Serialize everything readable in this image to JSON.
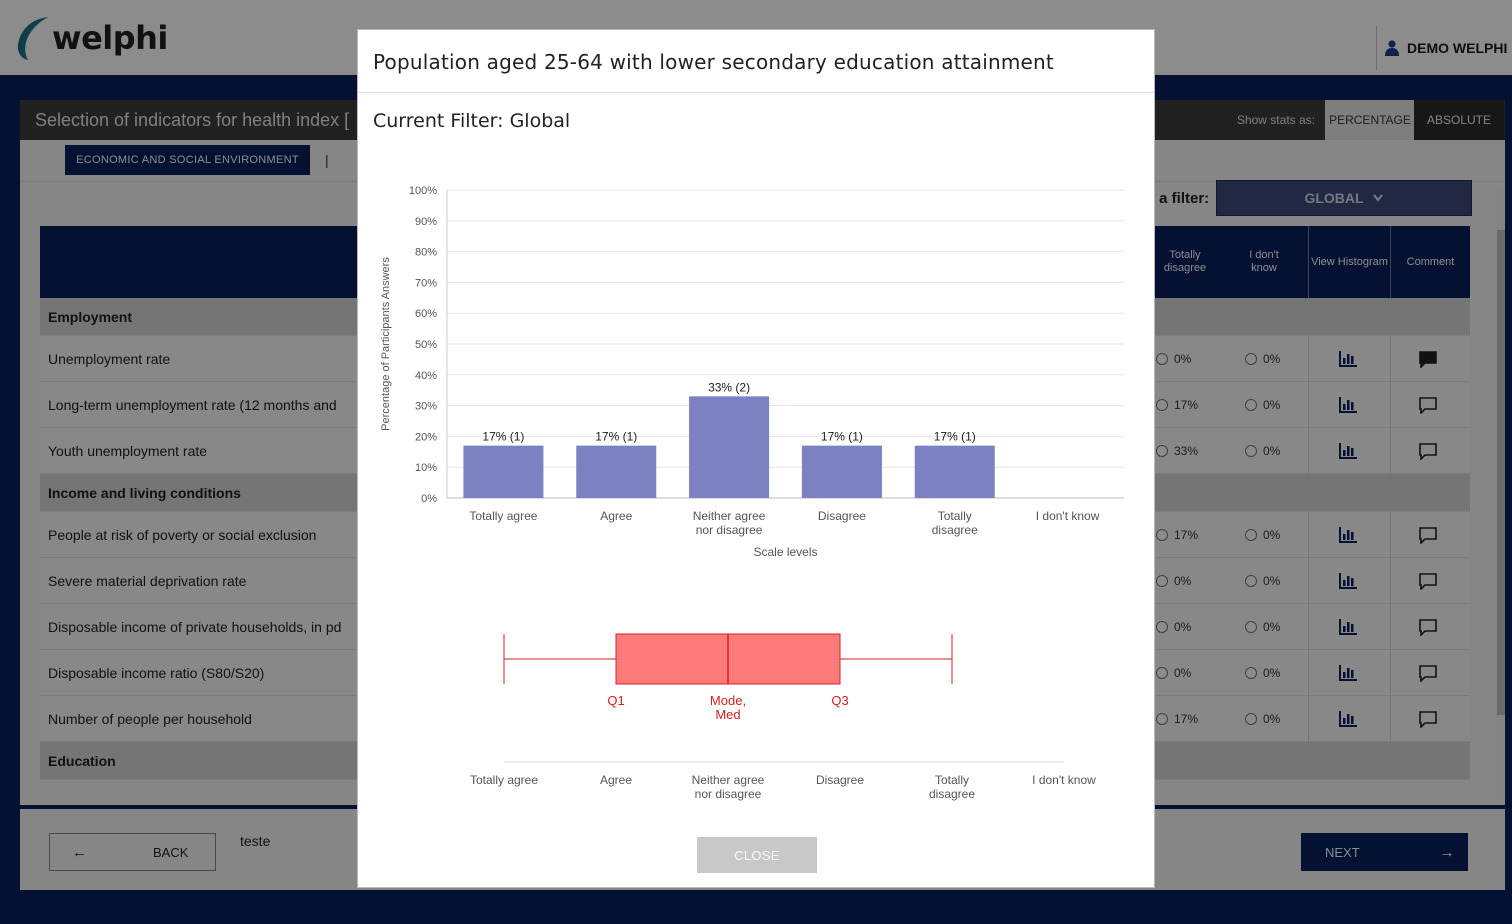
{
  "app": {
    "logo_text": "welphi",
    "user_name": "DEMO WELPHI"
  },
  "page": {
    "title": "Selection of indicators for health index [",
    "show_stats_label": "Show stats as:",
    "stats_options": [
      "PERCENTAGE",
      "ABSOLUTE"
    ],
    "active_tab": "ECONOMIC AND SOCIAL ENVIRONMENT",
    "tab_separator": "|",
    "filter_label": "t a filter:",
    "filter_value": "GLOBAL",
    "columns": {
      "totally_disagree": "Totally disagree",
      "dont_know": "I don't know",
      "view_histogram": "View Histogram",
      "comment": "Comment"
    },
    "rows": [
      {
        "type": "group",
        "label": "Employment"
      },
      {
        "type": "item",
        "label": "Unemployment rate",
        "td": "0%",
        "dk": "0%",
        "comment_filled": true
      },
      {
        "type": "item",
        "label": "Long-term unemployment rate (12 months and",
        "td": "17%",
        "dk": "0%",
        "comment_filled": false
      },
      {
        "type": "item",
        "label": "Youth unemployment rate",
        "td": "33%",
        "dk": "0%",
        "comment_filled": false
      },
      {
        "type": "group",
        "label": "Income and living conditions"
      },
      {
        "type": "item",
        "label": "People at risk of poverty or social exclusion",
        "td": "17%",
        "dk": "0%",
        "comment_filled": false
      },
      {
        "type": "item",
        "label": "Severe material deprivation rate",
        "td": "0%",
        "dk": "0%",
        "comment_filled": false
      },
      {
        "type": "item",
        "label": "Disposable income of private households, in pd",
        "td": "0%",
        "dk": "0%",
        "comment_filled": false
      },
      {
        "type": "item",
        "label": "Disposable income ratio (S80/S20)",
        "td": "0%",
        "dk": "0%",
        "comment_filled": false
      },
      {
        "type": "item",
        "label": "Number of people per household",
        "td": "17%",
        "dk": "0%",
        "comment_filled": false
      },
      {
        "type": "group",
        "label": "Education"
      }
    ],
    "back_label": "BACK",
    "next_label": "NEXT",
    "comment_text": "teste"
  },
  "modal": {
    "title": "Population aged 25-64 with lower secondary education attainment",
    "filter_text": "Current Filter: Global",
    "close_label": "CLOSE"
  },
  "chart_data": [
    {
      "type": "bar",
      "categories": [
        "Totally agree",
        "Agree",
        "Neither agree nor disagree",
        "Disagree",
        "Totally disagree",
        "I don't know"
      ],
      "values": [
        17,
        17,
        33,
        17,
        17,
        0
      ],
      "counts": [
        1,
        1,
        2,
        1,
        1,
        0
      ],
      "data_labels": [
        "17% (1)",
        "17% (1)",
        "33% (2)",
        "17% (1)",
        "17% (1)",
        ""
      ],
      "xlabel": "Scale levels",
      "ylabel": "Percentage of Participants Answers",
      "ylim": [
        0,
        100
      ],
      "yticks": [
        "0%",
        "10%",
        "20%",
        "30%",
        "40%",
        "50%",
        "60%",
        "70%",
        "80%",
        "90%",
        "100%"
      ],
      "grid": true,
      "color": "#7b81c1"
    },
    {
      "type": "boxplot",
      "categories": [
        "Totally agree",
        "Agree",
        "Neither agree nor disagree",
        "Disagree",
        "Totally disagree",
        "I don't know"
      ],
      "min": "Totally agree",
      "q1": "Agree",
      "median": "Neither agree nor disagree",
      "mode": "Neither agree nor disagree",
      "q3": "Disagree",
      "max": "Totally disagree",
      "labels": {
        "q1": "Q1",
        "mode_med": "Mode, Med",
        "q3": "Q3"
      },
      "color": "#ff7b7b",
      "stroke": "#d42020"
    }
  ]
}
